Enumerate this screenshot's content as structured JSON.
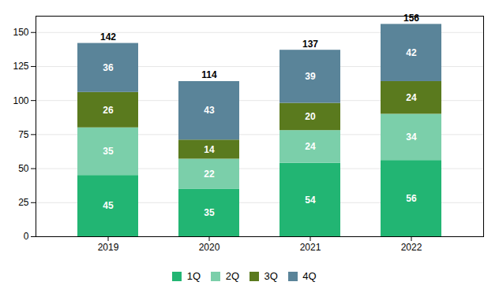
{
  "chart_data": {
    "type": "bar",
    "stacked": true,
    "categories": [
      "2019",
      "2020",
      "2021",
      "2022"
    ],
    "series": [
      {
        "name": "1Q",
        "color": "#22b573",
        "values": [
          45,
          35,
          54,
          56
        ]
      },
      {
        "name": "2Q",
        "color": "#7bcfaa",
        "values": [
          35,
          22,
          24,
          34
        ]
      },
      {
        "name": "3Q",
        "color": "#5a7a1e",
        "values": [
          26,
          14,
          20,
          24
        ]
      },
      {
        "name": "4Q",
        "color": "#5a8499",
        "values": [
          36,
          43,
          39,
          42
        ]
      }
    ],
    "totals": [
      142,
      114,
      137,
      156
    ],
    "ylim": [
      0,
      162
    ],
    "yticks": [
      0,
      25,
      50,
      75,
      100,
      125,
      150
    ],
    "grid": true,
    "legend": "bottom",
    "data_labels": true
  }
}
